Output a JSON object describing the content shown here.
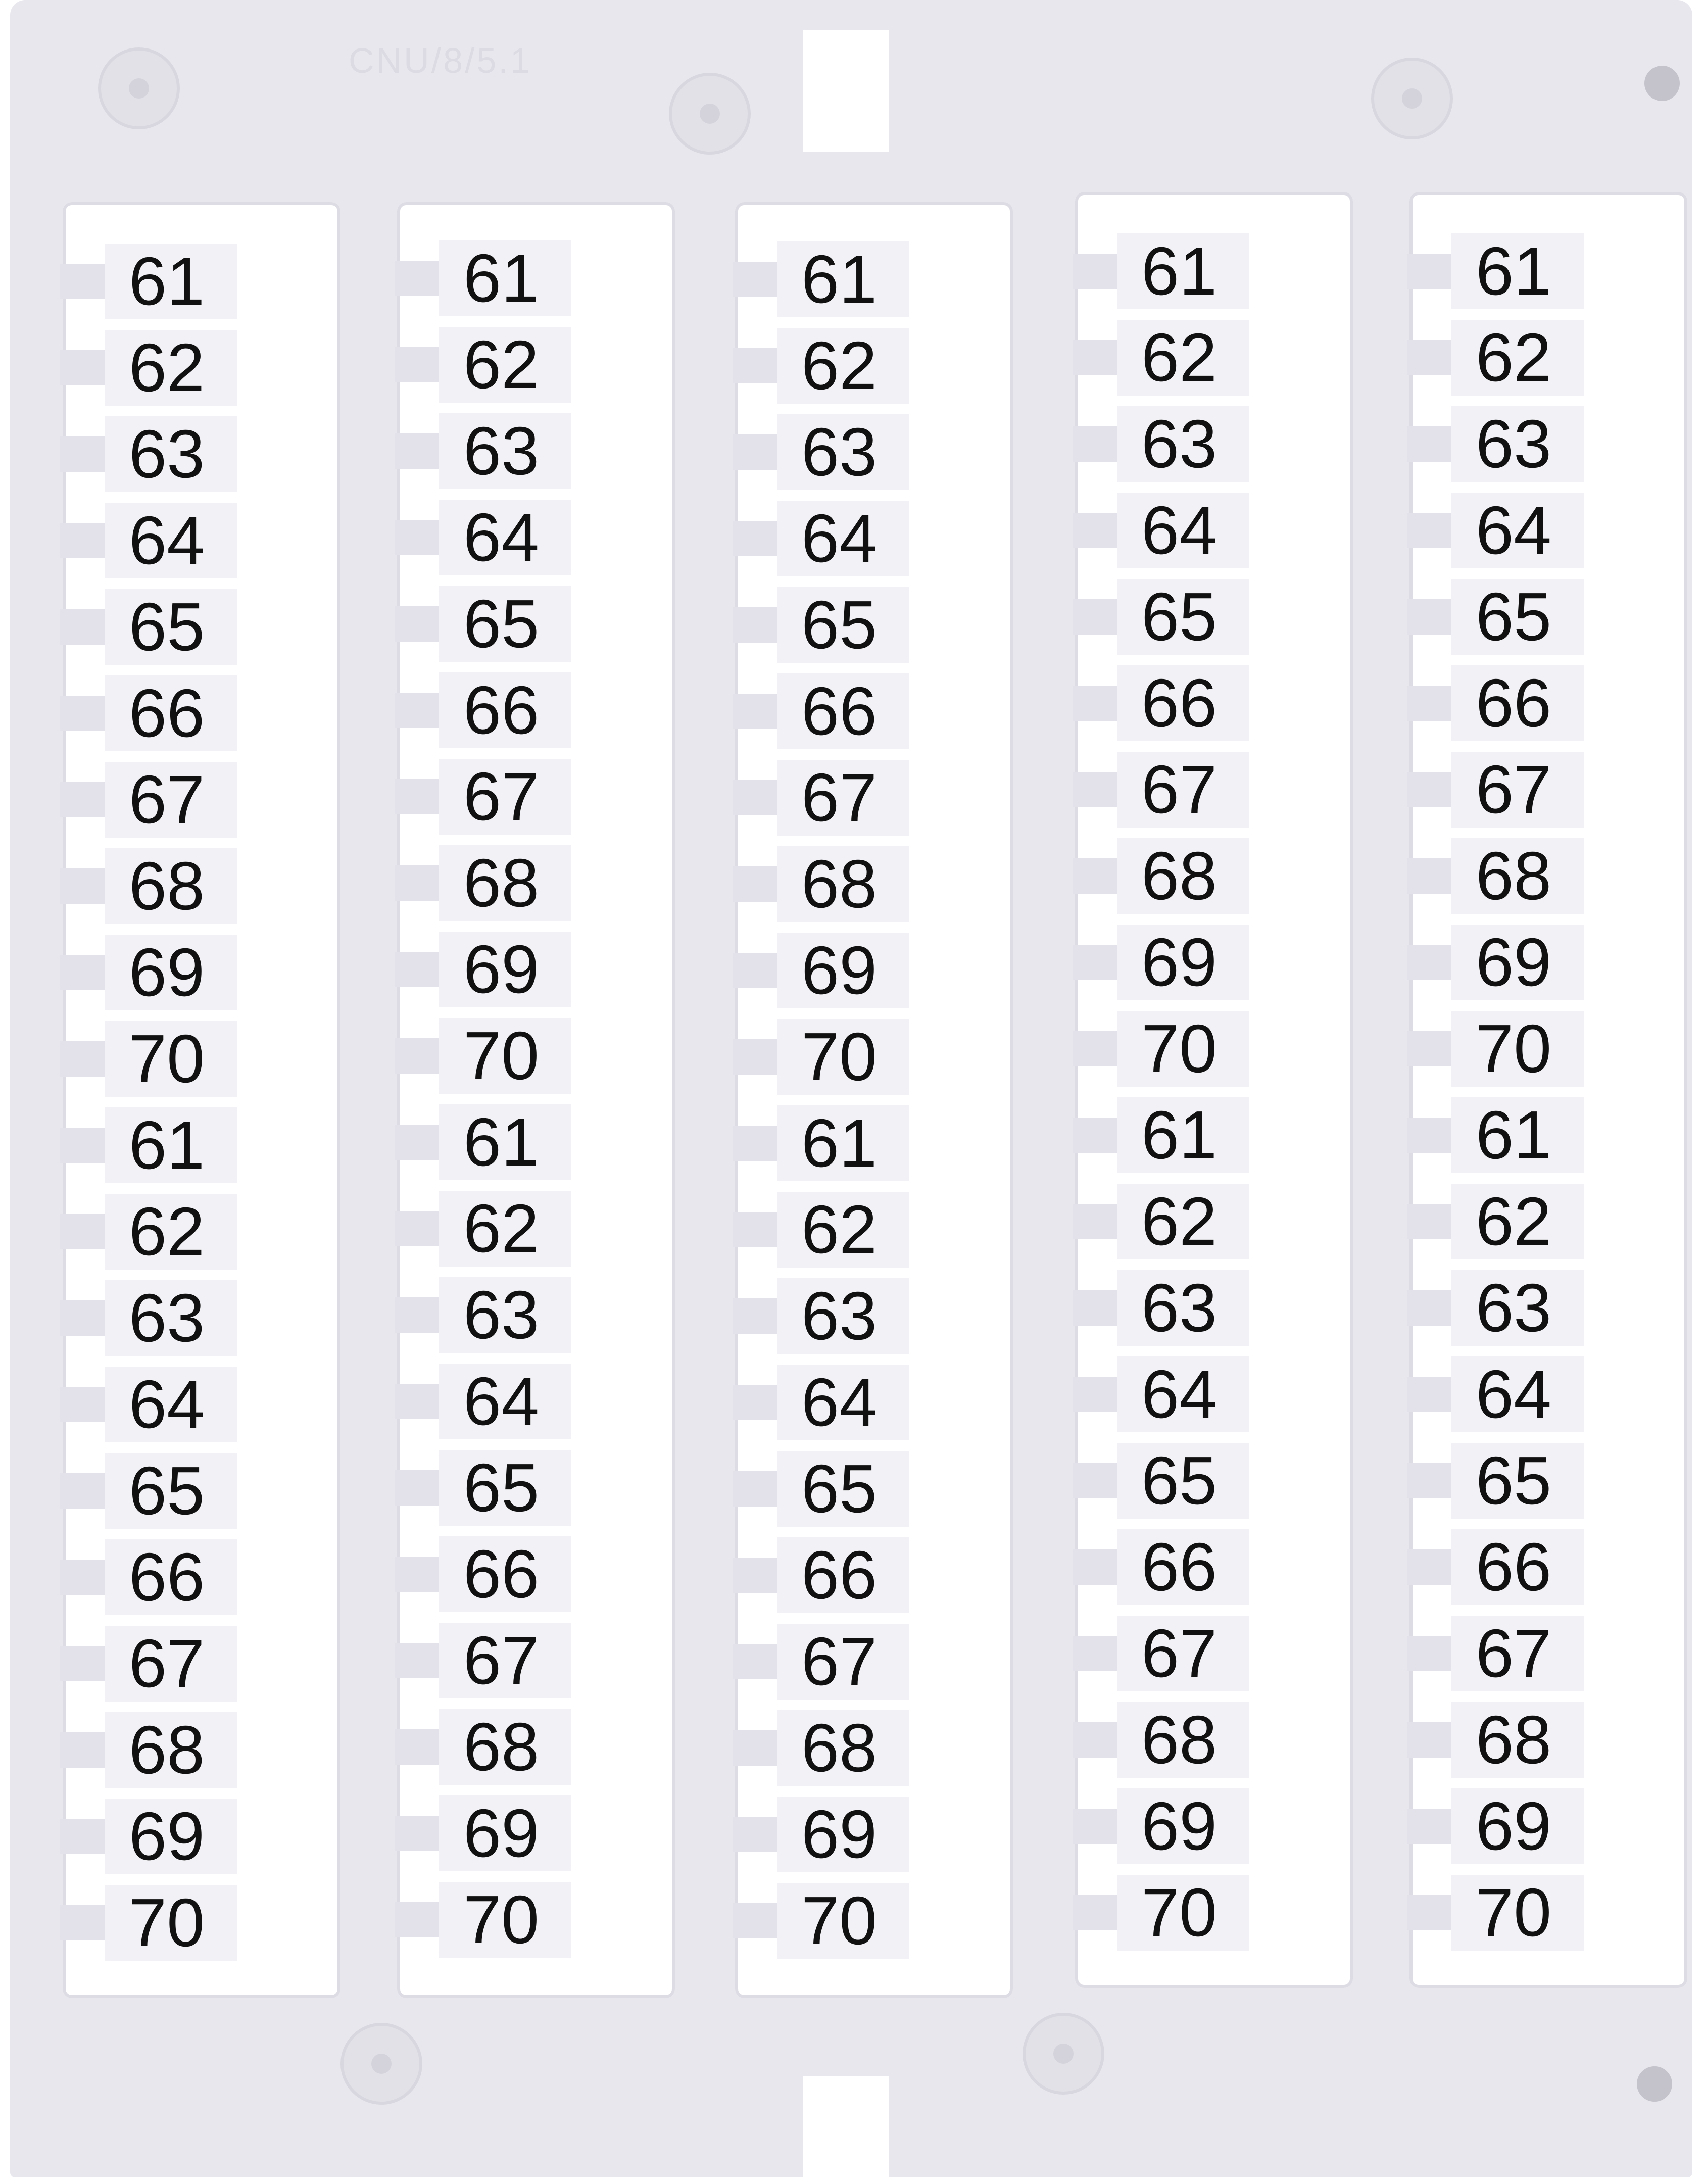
{
  "product": {
    "embossed_code": "CNU/8/5.1",
    "frame_color": "#e8e7ee",
    "label_color": "#f2f2f6",
    "text_color": "#111111"
  },
  "columns": [
    {
      "labels": [
        "61",
        "62",
        "63",
        "64",
        "65",
        "66",
        "67",
        "68",
        "69",
        "70",
        "61",
        "62",
        "63",
        "64",
        "65",
        "66",
        "67",
        "68",
        "69",
        "70"
      ]
    },
    {
      "labels": [
        "61",
        "62",
        "63",
        "64",
        "65",
        "66",
        "67",
        "68",
        "69",
        "70",
        "61",
        "62",
        "63",
        "64",
        "65",
        "66",
        "67",
        "68",
        "69",
        "70"
      ]
    },
    {
      "labels": [
        "61",
        "62",
        "63",
        "64",
        "65",
        "66",
        "67",
        "68",
        "69",
        "70",
        "61",
        "62",
        "63",
        "64",
        "65",
        "66",
        "67",
        "68",
        "69",
        "70"
      ]
    },
    {
      "labels": [
        "61",
        "62",
        "63",
        "64",
        "65",
        "66",
        "67",
        "68",
        "69",
        "70",
        "61",
        "62",
        "63",
        "64",
        "65",
        "66",
        "67",
        "68",
        "69",
        "70"
      ]
    },
    {
      "labels": [
        "61",
        "62",
        "63",
        "64",
        "65",
        "66",
        "67",
        "68",
        "69",
        "70",
        "61",
        "62",
        "63",
        "64",
        "65",
        "66",
        "67",
        "68",
        "69",
        "70"
      ]
    }
  ]
}
